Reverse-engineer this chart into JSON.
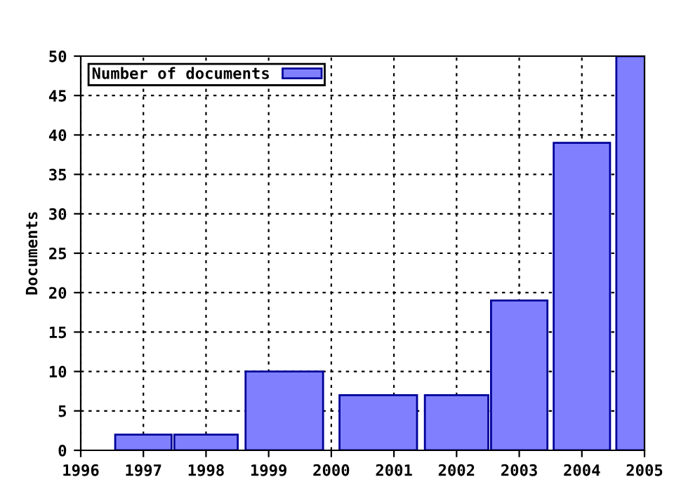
{
  "chart_data": {
    "type": "bar",
    "ylabel": "Documents",
    "x": [
      1997,
      1998,
      1999.25,
      2000.75,
      2002,
      2003,
      2004,
      2005
    ],
    "series": [
      {
        "name": "Number of documents",
        "color": "#8080ff",
        "values": [
          2,
          2,
          10,
          7,
          7,
          19,
          39,
          50
        ]
      }
    ],
    "xlim": [
      1996,
      2005
    ],
    "xticks": [
      1996,
      1997,
      1998,
      1999,
      2000,
      2001,
      2002,
      2003,
      2004,
      2005
    ],
    "ylim": [
      0,
      50
    ],
    "yticks": [
      0,
      5,
      10,
      15,
      20,
      25,
      30,
      35,
      40,
      45,
      50
    ],
    "grid": true,
    "legend": "top left"
  }
}
